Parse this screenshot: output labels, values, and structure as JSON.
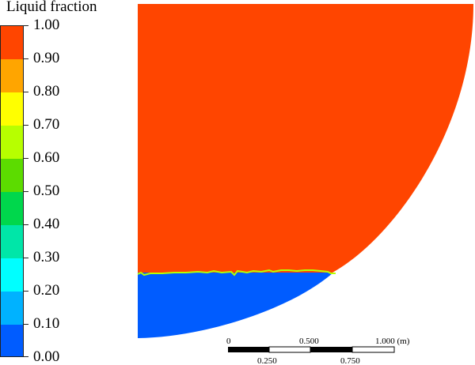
{
  "legend": {
    "title": "Liquid fraction",
    "levels": [
      {
        "label": "1.00",
        "value": 1.0
      },
      {
        "label": "0.90",
        "value": 0.9
      },
      {
        "label": "0.80",
        "value": 0.8
      },
      {
        "label": "0.70",
        "value": 0.7
      },
      {
        "label": "0.60",
        "value": 0.6
      },
      {
        "label": "0.50",
        "value": 0.5
      },
      {
        "label": "0.40",
        "value": 0.4
      },
      {
        "label": "0.30",
        "value": 0.3
      },
      {
        "label": "0.20",
        "value": 0.2
      },
      {
        "label": "0.10",
        "value": 0.1
      },
      {
        "label": "0.00",
        "value": 0.0
      }
    ],
    "band_colors": [
      "#ff4500",
      "#ffa500",
      "#ffff00",
      "#b7ff00",
      "#5cdc00",
      "#00d74c",
      "#00e6a8",
      "#00ffff",
      "#00b2ff",
      "#005cff"
    ]
  },
  "scale_bar": {
    "top_labels": [
      "0",
      "0.500",
      "1.000 (m)"
    ],
    "bottom_labels": [
      "0.250",
      "0.750"
    ]
  },
  "field": {
    "liquid_color": "#ff4500",
    "solid_color": "#005cff",
    "interface_color": "#b7ff00"
  }
}
